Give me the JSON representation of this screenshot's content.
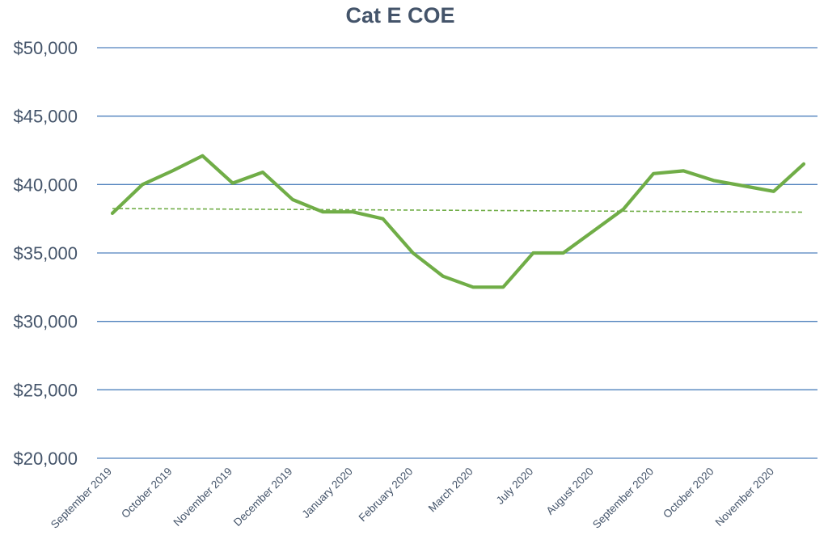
{
  "chart_data": {
    "type": "line",
    "title": "Cat E COE",
    "xlabel": "",
    "ylabel": "",
    "ylim": [
      20000,
      50000
    ],
    "yticks": [
      20000,
      25000,
      30000,
      35000,
      40000,
      45000,
      50000
    ],
    "ytick_labels": [
      "$20,000",
      "$25,000",
      "$30,000",
      "$35,000",
      "$40,000",
      "$45,000",
      "$50,000"
    ],
    "x_tick_labels": [
      "September 2019",
      "October 2019",
      "November 2019",
      "December 2019",
      "January 2020",
      "February 2020",
      "March 2020",
      "July 2020",
      "August 2020",
      "September 2020",
      "October 2020",
      "November 2020"
    ],
    "grid": true,
    "legend": "none",
    "series": [
      {
        "style": "solid",
        "color": "#70ad47",
        "values": [
          37900,
          40000,
          41000,
          42100,
          40100,
          40900,
          38900,
          38000,
          38000,
          37500,
          35000,
          33300,
          32500,
          32500,
          35000,
          35000,
          36600,
          38200,
          40800,
          41000,
          40300,
          39900,
          39500,
          41500
        ]
      },
      {
        "style": "dashed",
        "color": "#70ad47",
        "trendline": "linear",
        "values": [
          38250,
          37980
        ]
      }
    ],
    "colors": {
      "grid": "#4f81bd",
      "text": "#44546a",
      "line": "#70ad47"
    }
  }
}
